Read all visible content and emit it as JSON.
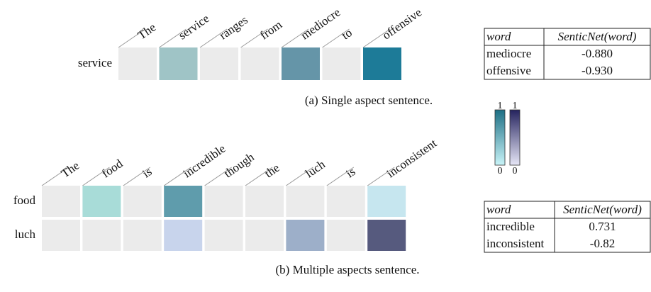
{
  "panels": [
    {
      "caption": "(a) Single aspect sentence.",
      "words": [
        "The",
        "service",
        "ranges",
        "from",
        "mediocre",
        "to",
        "offensive"
      ],
      "rows": [
        {
          "label": "service",
          "colors": [
            "#ebebeb",
            "#9fc4c6",
            "#ebebeb",
            "#ebebeb",
            "#6595a8",
            "#ebebeb",
            "#1d7b98"
          ]
        }
      ]
    },
    {
      "caption": "(b) Multiple aspects sentence.",
      "words": [
        "The",
        "food",
        "is",
        "incredible",
        "though",
        "the",
        "luch",
        "is",
        "inconsistent"
      ],
      "rows": [
        {
          "label": "food",
          "colors": [
            "#ebebeb",
            "#a8dcd8",
            "#ebebeb",
            "#5f9cac",
            "#ebebeb",
            "#ebebeb",
            "#ebebeb",
            "#ebebeb",
            "#c6e6ef"
          ]
        },
        {
          "label": "luch",
          "colors": [
            "#ebebeb",
            "#ebebeb",
            "#ebebeb",
            "#c8d4ec",
            "#ebebeb",
            "#ebebeb",
            "#9dafc9",
            "#ebebeb",
            "#565a7e"
          ]
        }
      ]
    }
  ],
  "tables": [
    {
      "header": [
        "word",
        "SenticNet(word)"
      ],
      "rows": [
        [
          "mediocre",
          "-0.880"
        ],
        [
          "offensive",
          "-0.930"
        ]
      ]
    },
    {
      "header": [
        "word",
        "SenticNet(word)"
      ],
      "rows": [
        [
          "incredible",
          "0.731"
        ],
        [
          "inconsistent",
          "-0.82"
        ]
      ]
    }
  ],
  "colorbars": [
    {
      "top": "1",
      "bottom": "0",
      "colors": [
        "#1d6f84",
        "#c8f4f8"
      ]
    },
    {
      "top": "1",
      "bottom": "0",
      "colors": [
        "#25235e",
        "#e6e6f6"
      ]
    }
  ]
}
